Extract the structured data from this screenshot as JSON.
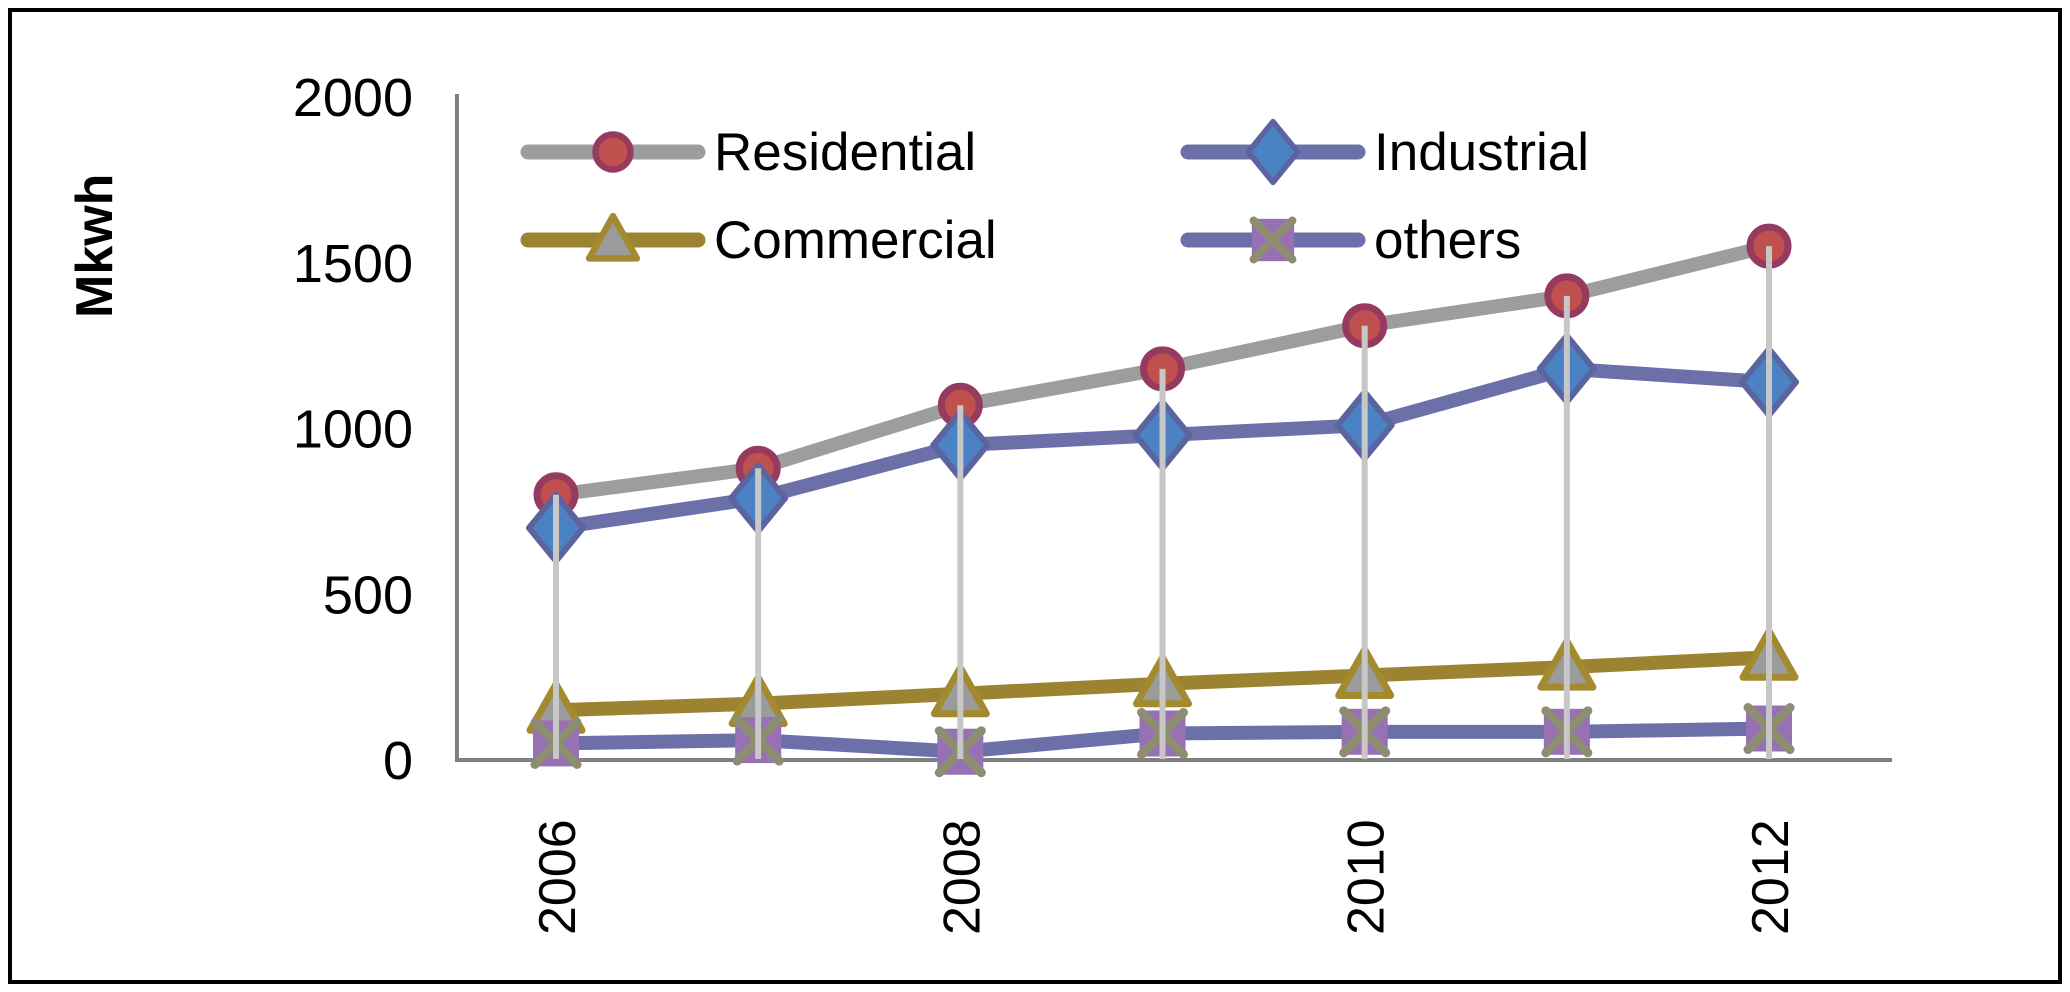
{
  "figure": {
    "background": "#ffffff",
    "border_color": "#000000",
    "axis_color": "#7f7f7f",
    "drop_line_color": "#c7c7c7",
    "text_color": "#000000"
  },
  "chart_data": {
    "type": "line",
    "title": "",
    "xlabel": "",
    "ylabel": "Mkwh",
    "ylim": [
      0,
      2000
    ],
    "y_ticks": [
      0,
      500,
      1000,
      1500,
      2000
    ],
    "x": [
      2006,
      2007,
      2008,
      2009,
      2010,
      2011,
      2012
    ],
    "x_tick_labels": [
      "2006",
      "2008",
      "2010",
      "2012"
    ],
    "grid": false,
    "legend_position": "top-inside-two-columns",
    "drop_lines": true,
    "series": [
      {
        "name": "Residential",
        "values": [
          800,
          880,
          1070,
          1180,
          1310,
          1400,
          1550
        ],
        "line_color": "#9d9d9d",
        "marker": "circle",
        "marker_fill": "#c0504d",
        "marker_edge": "#963a60"
      },
      {
        "name": "Industrial",
        "values": [
          700,
          790,
          950,
          980,
          1010,
          1180,
          1140
        ],
        "line_color": "#6b71a8",
        "marker": "diamond",
        "marker_fill": "#4a82c4",
        "marker_edge": "#5c64a0"
      },
      {
        "name": "Commercial",
        "values": [
          150,
          170,
          200,
          230,
          255,
          280,
          310
        ],
        "line_color": "#9c8331",
        "marker": "triangle",
        "marker_fill": "#9b9b9b",
        "marker_edge": "#a38a2e"
      },
      {
        "name": "others",
        "values": [
          50,
          60,
          25,
          80,
          85,
          85,
          95
        ],
        "line_color": "#6b71a8",
        "marker": "square-x",
        "marker_fill": "#9771b3",
        "marker_edge": "#8d8d72"
      }
    ]
  },
  "legend": {
    "items": [
      {
        "label": "Residential"
      },
      {
        "label": "Industrial"
      },
      {
        "label": "Commercial"
      },
      {
        "label": "others"
      }
    ]
  }
}
